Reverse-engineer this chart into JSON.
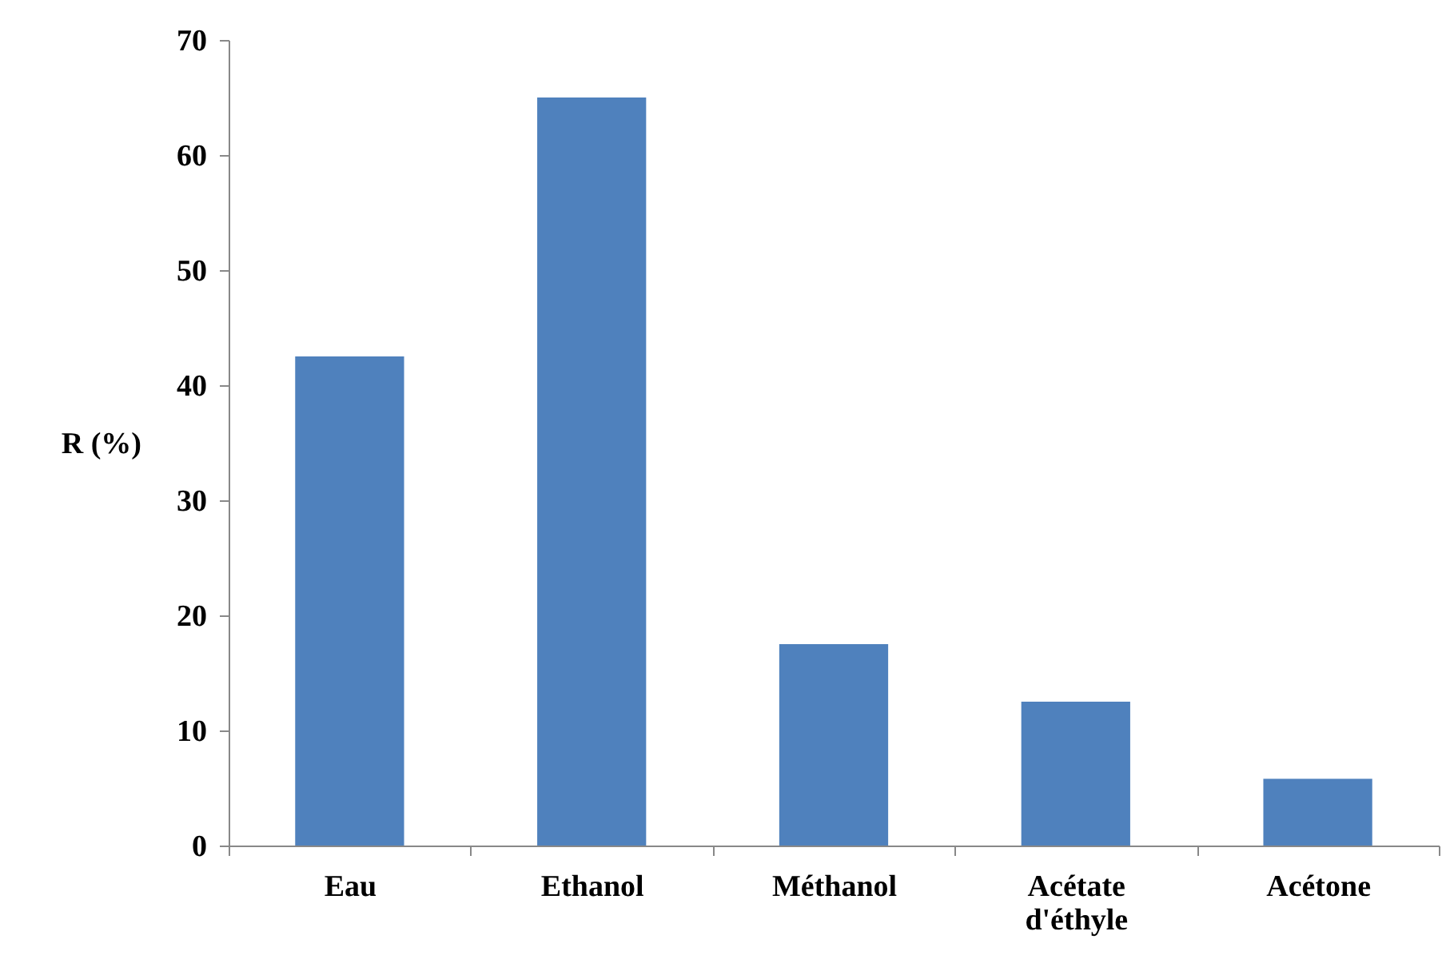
{
  "chart_data": {
    "type": "bar",
    "ylabel": "R (%)",
    "categories": [
      "Eau",
      "Ethanol",
      "Méthanol",
      "Acétate d'éthyle",
      "Acétone"
    ],
    "values": [
      42.5,
      65,
      17.5,
      12.5,
      5.8
    ],
    "color": "#4f81bd",
    "ylim": [
      0,
      70
    ],
    "yticks": [
      0,
      10,
      20,
      30,
      40,
      50,
      60,
      70
    ],
    "grid": false
  }
}
